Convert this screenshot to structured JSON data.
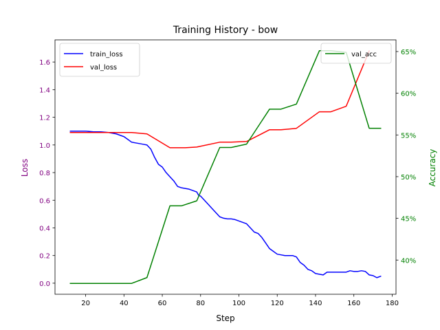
{
  "chart_data": {
    "type": "line",
    "title": "Training History - bow",
    "xlabel": "Step",
    "ylabel_left": "Loss",
    "ylabel_right": "Accuracy",
    "xlim": [
      4,
      182
    ],
    "ylim_left": [
      -0.08,
      1.76
    ],
    "ylim_right": [
      35.9,
      66.4
    ],
    "x_ticks": [
      20,
      40,
      60,
      80,
      100,
      120,
      140,
      160,
      180
    ],
    "y_left_ticks": [
      0.0,
      0.2,
      0.4,
      0.6,
      0.8,
      1.0,
      1.2,
      1.4,
      1.6
    ],
    "y_right_ticks": [
      40,
      45,
      50,
      55,
      60,
      65
    ],
    "y_right_tick_format": "{v}%",
    "grid": false,
    "legend_left": "upper left",
    "legend_right": "upper right",
    "series": [
      {
        "name": "train_loss",
        "axis": "left",
        "color": "#0000ff",
        "x": [
          12,
          16,
          20,
          24,
          28,
          32,
          36,
          38,
          40,
          42,
          44,
          46,
          48,
          50,
          52,
          54,
          56,
          58,
          60,
          62,
          64,
          66,
          68,
          70,
          72,
          74,
          76,
          78,
          79,
          80,
          82,
          84,
          86,
          88,
          90,
          92,
          94,
          96,
          98,
          100,
          102,
          104,
          106,
          108,
          110,
          112,
          114,
          116,
          118,
          120,
          122,
          124,
          126,
          128,
          130,
          132,
          134,
          136,
          138,
          140,
          142,
          144,
          146,
          148,
          150,
          152,
          154,
          156,
          158,
          160,
          162,
          164,
          166,
          168,
          170,
          172,
          174
        ],
        "y": [
          1.1,
          1.1,
          1.1,
          1.095,
          1.095,
          1.09,
          1.08,
          1.07,
          1.06,
          1.04,
          1.02,
          1.015,
          1.01,
          1.005,
          1.0,
          0.97,
          0.91,
          0.86,
          0.84,
          0.8,
          0.77,
          0.74,
          0.7,
          0.69,
          0.685,
          0.68,
          0.67,
          0.66,
          0.635,
          0.63,
          0.6,
          0.57,
          0.54,
          0.51,
          0.48,
          0.47,
          0.465,
          0.465,
          0.46,
          0.45,
          0.44,
          0.43,
          0.4,
          0.37,
          0.36,
          0.33,
          0.29,
          0.25,
          0.23,
          0.21,
          0.205,
          0.2,
          0.2,
          0.2,
          0.19,
          0.15,
          0.13,
          0.1,
          0.09,
          0.07,
          0.065,
          0.06,
          0.08,
          0.08,
          0.08,
          0.08,
          0.08,
          0.08,
          0.09,
          0.085,
          0.085,
          0.09,
          0.085,
          0.06,
          0.055,
          0.04,
          0.05
        ]
      },
      {
        "name": "val_loss",
        "axis": "left",
        "color": "#ff0000",
        "x": [
          12,
          20,
          28,
          36,
          44,
          52,
          64,
          72,
          78,
          90,
          96,
          104,
          116,
          122,
          130,
          142,
          148,
          156,
          168
        ],
        "y": [
          1.09,
          1.09,
          1.09,
          1.09,
          1.09,
          1.08,
          0.98,
          0.98,
          0.985,
          1.02,
          1.02,
          1.025,
          1.11,
          1.11,
          1.12,
          1.24,
          1.24,
          1.28,
          1.68
        ]
      },
      {
        "name": "val_acc",
        "axis": "right",
        "color": "#008000",
        "x": [
          12,
          20,
          28,
          36,
          44,
          52,
          64,
          70,
          78,
          90,
          96,
          104,
          116,
          122,
          130,
          142,
          148,
          156,
          168,
          174
        ],
        "y": [
          37.2,
          37.2,
          37.2,
          37.2,
          37.2,
          37.9,
          46.5,
          46.5,
          47.1,
          53.5,
          53.5,
          53.9,
          58.1,
          58.1,
          58.7,
          65.1,
          65.1,
          64.9,
          55.8,
          55.8
        ]
      }
    ]
  }
}
